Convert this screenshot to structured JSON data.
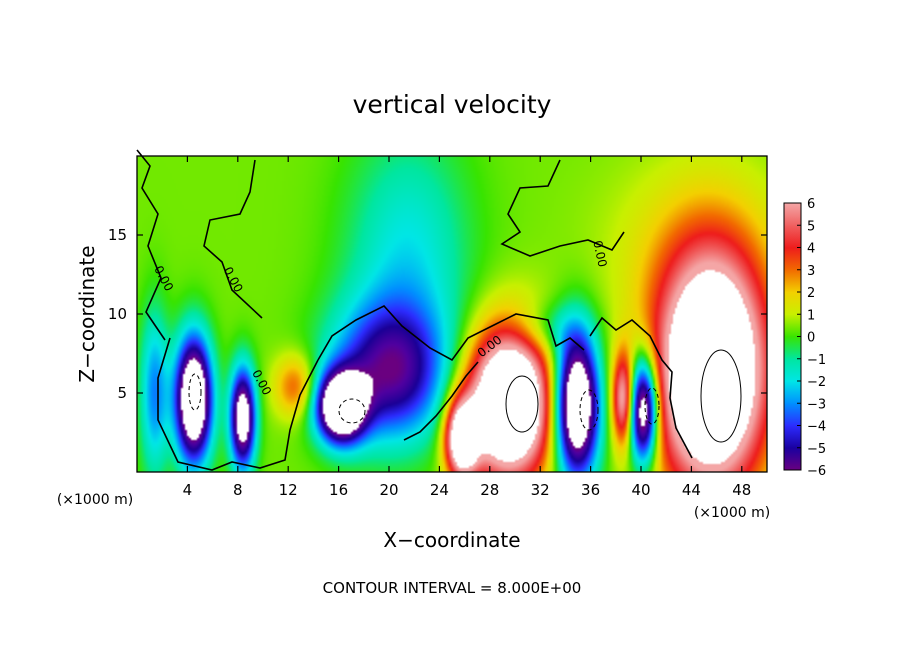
{
  "chart_data": {
    "type": "heatmap",
    "title": "vertical velocity",
    "xlabel": "X−coordinate",
    "ylabel": "Z−coordinate",
    "x_unit_left": "(×1000 m)",
    "x_unit_right": "(×1000 m)",
    "footer": "CONTOUR INTERVAL = 8.000E+00",
    "xlim": [
      0,
      50
    ],
    "ylim": [
      0,
      20
    ],
    "x_ticks": [
      4,
      8,
      12,
      16,
      20,
      24,
      28,
      32,
      36,
      40,
      44,
      48
    ],
    "x_tick_labels": [
      "4",
      "8",
      "12",
      "16",
      "20",
      "24",
      "28",
      "32",
      "36",
      "40",
      "44",
      "48"
    ],
    "y_ticks": [
      5,
      10,
      15
    ],
    "y_tick_labels": [
      "5",
      "10",
      "15"
    ],
    "background_value": 0.4,
    "colorbar": {
      "min": -6,
      "max": 6,
      "labels": [
        "6",
        "5",
        "4",
        "3",
        "2",
        "1",
        "0",
        "−1",
        "−2",
        "−3",
        "−4",
        "−5",
        "−6"
      ],
      "colors": [
        "#f4a6a6",
        "#f06060",
        "#ee1c1c",
        "#f26a00",
        "#f3d000",
        "#c8f000",
        "#38e400",
        "#00e6a0",
        "#00e6e6",
        "#0090ff",
        "#2c2cff",
        "#1a00a0",
        "#6a0080"
      ]
    },
    "contour_labels": [
      "0.00",
      "0.00",
      "0.00",
      "0.00",
      "0.00"
    ],
    "features": [
      {
        "x": 4.5,
        "z": 4.6,
        "value": 11,
        "sx": 1.0,
        "sz": 2.7,
        "t": -1
      },
      {
        "x": 8.4,
        "z": 3.4,
        "value": 9,
        "sx": 0.7,
        "sz": 2.2,
        "t": -1
      },
      {
        "x": 16.2,
        "z": 4.1,
        "value": 11,
        "sx": 1.3,
        "sz": 1.5,
        "t": -1
      },
      {
        "x": 20.0,
        "z": 6.3,
        "value": 6,
        "sx": 3.2,
        "sz": 3.0,
        "t": -1
      },
      {
        "x": 25.8,
        "z": 2.1,
        "value": 9,
        "sx": 0.9,
        "sz": 1.7,
        "t": 1
      },
      {
        "x": 29.5,
        "z": 4.3,
        "value": 12,
        "sx": 2.3,
        "sz": 3.2,
        "t": 1
      },
      {
        "x": 34.9,
        "z": 4.2,
        "value": 11,
        "sx": 1.2,
        "sz": 3.1,
        "t": -1
      },
      {
        "x": 38.6,
        "z": 4.6,
        "value": 6,
        "sx": 0.6,
        "sz": 2.0,
        "t": 1
      },
      {
        "x": 40.2,
        "z": 3.9,
        "value": 10,
        "sx": 0.8,
        "sz": 2.3,
        "t": -1
      },
      {
        "x": 45.6,
        "z": 6.2,
        "value": 12,
        "sx": 3.0,
        "sz": 5.0,
        "t": 1
      },
      {
        "x": 12.6,
        "z": 5.4,
        "value": 3,
        "sx": 1.2,
        "sz": 1.4,
        "t": 1
      },
      {
        "x": 1.4,
        "z": 5.0,
        "value": 3.5,
        "sx": 0.8,
        "sz": 3.6,
        "t": -1
      },
      {
        "x": 21.5,
        "z": 13.5,
        "value": 2.4,
        "sx": 3.4,
        "sz": 5.5,
        "t": -1
      },
      {
        "x": 44.5,
        "z": 14.0,
        "value": 1.2,
        "sx": 5.0,
        "sz": 4.0,
        "t": 1
      },
      {
        "x": 32.5,
        "z": 9.0,
        "value": 1.6,
        "sx": 2.0,
        "sz": 1.2,
        "t": -1
      }
    ]
  }
}
